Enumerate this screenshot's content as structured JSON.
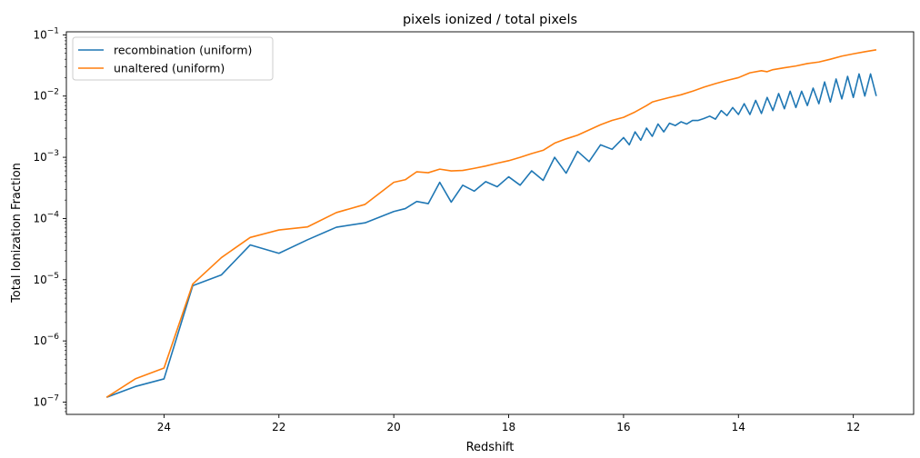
{
  "chart_data": {
    "type": "line",
    "title": "pixels ionized / total pixels",
    "xlabel": "Redshift",
    "ylabel": "Total Ionization Fraction",
    "xlim": [
      25.7,
      10.95
    ],
    "ylim_log10": [
      -7.2,
      -0.95
    ],
    "yscale": "log",
    "x_inverted": true,
    "grid": false,
    "legend_position": "upper-left",
    "x_ticks": [
      24,
      22,
      20,
      18,
      16,
      14,
      12
    ],
    "y_tick_exponents": [
      -7,
      -6,
      -5,
      -4,
      -3,
      -2,
      -1
    ],
    "y_tick_base": "10",
    "colors": {
      "recombination": "#1f77b4",
      "unaltered": "#ff7f0e"
    },
    "series": [
      {
        "name": "recombination (uniform)",
        "color": "#1f77b4",
        "x": [
          25.0,
          24.5,
          24.0,
          23.5,
          23.0,
          22.5,
          22.0,
          21.5,
          21.0,
          20.5,
          20.0,
          19.8,
          19.6,
          19.4,
          19.2,
          19.0,
          18.8,
          18.6,
          18.4,
          18.2,
          18.0,
          17.8,
          17.6,
          17.4,
          17.2,
          17.0,
          16.8,
          16.6,
          16.4,
          16.2,
          16.0,
          15.9,
          15.8,
          15.7,
          15.6,
          15.5,
          15.4,
          15.3,
          15.2,
          15.1,
          15.0,
          14.9,
          14.8,
          14.7,
          14.6,
          14.5,
          14.4,
          14.3,
          14.2,
          14.1,
          14.0,
          13.9,
          13.8,
          13.7,
          13.6,
          13.5,
          13.4,
          13.3,
          13.2,
          13.1,
          13.0,
          12.9,
          12.8,
          12.7,
          12.6,
          12.5,
          12.4,
          12.3,
          12.2,
          12.1,
          12.0,
          11.9,
          11.8,
          11.7,
          11.6
        ],
        "values": [
          1.2e-07,
          1.8e-07,
          2.4e-07,
          8e-06,
          1.2e-05,
          3.7e-05,
          2.7e-05,
          4.5e-05,
          7.2e-05,
          8.5e-05,
          0.00013,
          0.000145,
          0.00019,
          0.000175,
          0.00039,
          0.000185,
          0.00035,
          0.00028,
          0.0004,
          0.00033,
          0.00048,
          0.00035,
          0.0006,
          0.00042,
          0.001,
          0.00055,
          0.00125,
          0.00085,
          0.0016,
          0.00135,
          0.0021,
          0.0016,
          0.0026,
          0.0019,
          0.003,
          0.0022,
          0.0035,
          0.0026,
          0.0036,
          0.0033,
          0.0038,
          0.0035,
          0.004,
          0.004,
          0.0043,
          0.0047,
          0.0042,
          0.0058,
          0.0048,
          0.0065,
          0.005,
          0.0075,
          0.005,
          0.0085,
          0.0052,
          0.0095,
          0.0058,
          0.011,
          0.0062,
          0.012,
          0.0065,
          0.012,
          0.007,
          0.0135,
          0.0075,
          0.017,
          0.008,
          0.019,
          0.009,
          0.021,
          0.0095,
          0.023,
          0.01,
          0.023,
          0.01
        ]
      },
      {
        "name": "unaltered (uniform)",
        "color": "#ff7f0e",
        "x": [
          25.0,
          24.5,
          24.0,
          23.5,
          23.0,
          22.5,
          22.0,
          21.5,
          21.0,
          20.5,
          20.0,
          19.8,
          19.6,
          19.4,
          19.2,
          19.0,
          18.8,
          18.6,
          18.4,
          18.2,
          18.0,
          17.8,
          17.6,
          17.4,
          17.2,
          17.0,
          16.8,
          16.6,
          16.4,
          16.2,
          16.0,
          15.8,
          15.6,
          15.5,
          15.4,
          15.2,
          15.0,
          14.8,
          14.6,
          14.4,
          14.2,
          14.0,
          13.8,
          13.6,
          13.5,
          13.4,
          13.2,
          13.0,
          12.8,
          12.6,
          12.4,
          12.2,
          12.0,
          11.8,
          11.6
        ],
        "values": [
          1.2e-07,
          2.4e-07,
          3.6e-07,
          8.5e-06,
          2.3e-05,
          4.9e-05,
          6.5e-05,
          7.3e-05,
          0.000125,
          0.00017,
          0.00039,
          0.00043,
          0.00058,
          0.00056,
          0.00064,
          0.0006,
          0.00061,
          0.00066,
          0.00072,
          0.0008,
          0.00088,
          0.001,
          0.00115,
          0.0013,
          0.0017,
          0.002,
          0.0023,
          0.0028,
          0.0034,
          0.004,
          0.0045,
          0.0055,
          0.007,
          0.008,
          0.0085,
          0.0095,
          0.0105,
          0.012,
          0.014,
          0.016,
          0.018,
          0.02,
          0.024,
          0.026,
          0.025,
          0.027,
          0.029,
          0.031,
          0.034,
          0.036,
          0.04,
          0.045,
          0.049,
          0.053,
          0.057
        ]
      }
    ]
  }
}
